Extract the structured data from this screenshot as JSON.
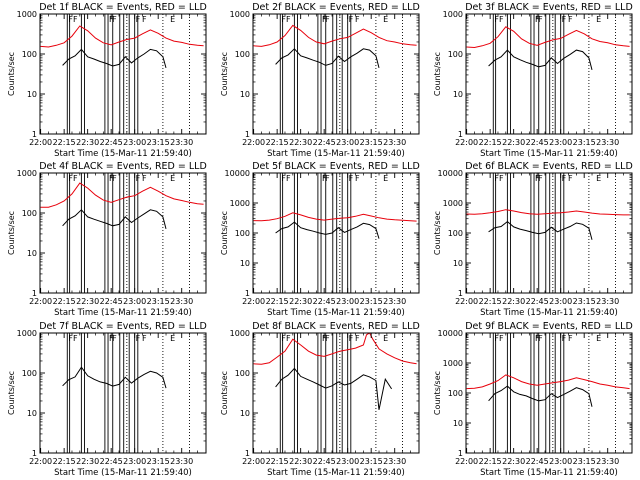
{
  "colors": {
    "events": "#000000",
    "lld": "#e8000b",
    "background": "#ffffff"
  },
  "shared": {
    "title_suffix": "BLACK = Events, RED = LLD",
    "xlabel": "Start Time (15-Mar-11 21:59:40)",
    "ylabel": "Counts/sec",
    "x_range_min": [
      -0.4,
      105.5
    ],
    "x_tick_minutes": [
      0,
      15,
      30,
      45,
      60,
      75,
      90
    ],
    "x_tick_labels": [
      "22:00",
      "22:15",
      "22:30",
      "22:45",
      "23:00",
      "23:15",
      "23:30"
    ],
    "dotted_marks_min": [
      55,
      78,
      95
    ],
    "markers": [
      {
        "min": 17,
        "label": "F"
      },
      {
        "min": 20,
        "label": "F"
      },
      {
        "min": 43,
        "label": "F"
      },
      {
        "min": 45,
        "label": "F"
      },
      {
        "min": 60,
        "label": "F"
      },
      {
        "min": 64,
        "label": "F"
      },
      {
        "min": 82,
        "label": "E"
      }
    ]
  },
  "chart_data": [
    {
      "type": "line",
      "name": "det1",
      "title": "Det 1f BLACK = Events, RED = LLD",
      "xlabel": "Start Time (15-Mar-11 21:59:40)",
      "ylabel": "Counts/sec",
      "y_scale": "log",
      "ylim": [
        1,
        1000
      ],
      "y_tick_labels": [
        "1",
        "10",
        "100",
        "1000"
      ],
      "vlines_min": [
        17,
        18.5,
        26,
        28,
        41,
        43,
        46,
        50.5,
        53,
        56.5,
        60,
        62
      ],
      "series": [
        {
          "name": "Events",
          "color": "#000000",
          "x_min": [
            14,
            18,
            22,
            26,
            30,
            34,
            38,
            42,
            46,
            50,
            54,
            58,
            62,
            66,
            70,
            74,
            78,
            80
          ],
          "values": [
            52,
            75,
            90,
            130,
            85,
            75,
            65,
            58,
            50,
            55,
            85,
            60,
            80,
            100,
            130,
            120,
            85,
            45
          ]
        },
        {
          "name": "LLD",
          "color": "#e8000b",
          "x_min": [
            0,
            5,
            10,
            15,
            20,
            25,
            30,
            35,
            40,
            45,
            50,
            55,
            60,
            65,
            70,
            75,
            80,
            85,
            90,
            95,
            100,
            104
          ],
          "values": [
            155,
            150,
            165,
            190,
            280,
            500,
            380,
            250,
            190,
            170,
            200,
            230,
            250,
            320,
            400,
            330,
            250,
            210,
            195,
            175,
            165,
            160
          ]
        }
      ]
    },
    {
      "type": "line",
      "name": "det2",
      "title": "Det 2f BLACK = Events, RED = LLD",
      "xlabel": "Start Time (15-Mar-11 21:59:40)",
      "ylabel": "Counts/sec",
      "y_scale": "log",
      "ylim": [
        1,
        1000
      ],
      "y_tick_labels": [
        "1",
        "10",
        "100",
        "1000"
      ],
      "vlines_min": [
        17,
        18.5,
        26,
        28,
        41,
        43,
        46,
        50.5,
        53,
        56.5,
        60,
        62
      ],
      "series": [
        {
          "name": "Events",
          "color": "#000000",
          "x_min": [
            14,
            18,
            22,
            26,
            30,
            34,
            38,
            42,
            46,
            50,
            54,
            58,
            62,
            66,
            70,
            74,
            78,
            80
          ],
          "values": [
            55,
            80,
            95,
            135,
            90,
            80,
            70,
            62,
            52,
            58,
            88,
            65,
            85,
            105,
            135,
            125,
            90,
            45
          ]
        },
        {
          "name": "LLD",
          "color": "#e8000b",
          "x_min": [
            0,
            5,
            10,
            15,
            20,
            25,
            30,
            35,
            40,
            45,
            50,
            55,
            60,
            65,
            70,
            75,
            80,
            85,
            90,
            95,
            100,
            104
          ],
          "values": [
            160,
            155,
            170,
            200,
            290,
            520,
            390,
            260,
            200,
            180,
            210,
            240,
            260,
            330,
            420,
            340,
            260,
            215,
            200,
            180,
            170,
            165
          ]
        }
      ]
    },
    {
      "type": "line",
      "name": "det3",
      "title": "Det 3f BLACK = Events, RED = LLD",
      "xlabel": "Start Time (15-Mar-11 21:59:40)",
      "ylabel": "Counts/sec",
      "y_scale": "log",
      "ylim": [
        1,
        1000
      ],
      "y_tick_labels": [
        "1",
        "10",
        "100",
        "1000"
      ],
      "vlines_min": [
        17,
        18.5,
        26,
        28,
        41,
        43,
        46,
        50.5,
        53,
        56.5,
        60,
        62
      ],
      "series": [
        {
          "name": "Events",
          "color": "#000000",
          "x_min": [
            14,
            18,
            22,
            26,
            30,
            34,
            38,
            42,
            46,
            50,
            54,
            58,
            62,
            66,
            70,
            74,
            78,
            80
          ],
          "values": [
            50,
            70,
            85,
            125,
            85,
            72,
            62,
            55,
            48,
            52,
            80,
            58,
            78,
            98,
            125,
            115,
            80,
            40
          ]
        },
        {
          "name": "LLD",
          "color": "#e8000b",
          "x_min": [
            0,
            5,
            10,
            15,
            20,
            25,
            30,
            35,
            40,
            45,
            50,
            55,
            60,
            65,
            70,
            75,
            80,
            85,
            90,
            95,
            100,
            104
          ],
          "values": [
            150,
            145,
            160,
            185,
            270,
            480,
            370,
            240,
            185,
            165,
            195,
            225,
            245,
            310,
            390,
            320,
            240,
            205,
            190,
            170,
            160,
            155
          ]
        }
      ]
    },
    {
      "type": "line",
      "name": "det4",
      "title": "Det 4f BLACK = Events, RED = LLD",
      "xlabel": "Start Time (15-Mar-11 21:59:40)",
      "ylabel": "Counts/sec",
      "y_scale": "log",
      "ylim": [
        1,
        1000
      ],
      "y_tick_labels": [
        "1",
        "10",
        "100",
        "1000"
      ],
      "vlines_min": [
        17,
        18.5,
        26,
        28,
        41,
        43,
        46,
        50.5,
        53,
        56.5,
        60,
        62
      ],
      "series": [
        {
          "name": "Events",
          "color": "#000000",
          "x_min": [
            14,
            18,
            22,
            26,
            30,
            34,
            38,
            42,
            46,
            50,
            54,
            58,
            62,
            66,
            70,
            74,
            78,
            80
          ],
          "values": [
            48,
            70,
            85,
            120,
            80,
            70,
            62,
            55,
            48,
            52,
            80,
            58,
            75,
            95,
            120,
            110,
            80,
            40
          ]
        },
        {
          "name": "LLD",
          "color": "#e8000b",
          "x_min": [
            0,
            5,
            10,
            15,
            20,
            25,
            30,
            35,
            40,
            45,
            50,
            55,
            60,
            65,
            70,
            75,
            80,
            85,
            90,
            95,
            100,
            104
          ],
          "values": [
            140,
            140,
            160,
            200,
            300,
            560,
            420,
            280,
            210,
            185,
            215,
            250,
            270,
            350,
            440,
            350,
            270,
            225,
            205,
            185,
            170,
            165
          ]
        }
      ]
    },
    {
      "type": "line",
      "name": "det5",
      "title": "Det 5f BLACK = Events, RED = LLD",
      "xlabel": "Start Time (15-Mar-11 21:59:40)",
      "ylabel": "Counts/sec",
      "y_scale": "log",
      "ylim": [
        1,
        10000
      ],
      "y_tick_labels": [
        "1",
        "10",
        "100",
        "1000",
        "10000"
      ],
      "vlines_min": [
        17,
        18.5,
        26,
        28,
        41,
        43,
        46,
        50.5,
        53,
        56.5,
        60,
        62
      ],
      "series": [
        {
          "name": "Events",
          "color": "#000000",
          "x_min": [
            14,
            18,
            22,
            26,
            30,
            34,
            38,
            42,
            46,
            50,
            54,
            58,
            62,
            66,
            70,
            74,
            78,
            80
          ],
          "values": [
            100,
            140,
            160,
            230,
            150,
            130,
            115,
            100,
            90,
            100,
            150,
            105,
            130,
            160,
            210,
            190,
            140,
            65
          ]
        },
        {
          "name": "LLD",
          "color": "#e8000b",
          "x_min": [
            0,
            5,
            10,
            15,
            20,
            25,
            30,
            35,
            40,
            45,
            50,
            55,
            60,
            65,
            70,
            75,
            80,
            85,
            90,
            95,
            100,
            104
          ],
          "values": [
            260,
            255,
            270,
            300,
            360,
            470,
            400,
            330,
            290,
            270,
            290,
            310,
            320,
            360,
            420,
            370,
            320,
            290,
            275,
            265,
            255,
            250
          ]
        }
      ]
    },
    {
      "type": "line",
      "name": "det6",
      "title": "Det 6f BLACK = Events, RED = LLD",
      "xlabel": "Start Time (15-Mar-11 21:59:40)",
      "ylabel": "Counts/sec",
      "y_scale": "log",
      "ylim": [
        1,
        10000
      ],
      "y_tick_labels": [
        "1",
        "10",
        "100",
        "1000",
        "10000"
      ],
      "vlines_min": [
        17,
        18.5,
        26,
        28,
        41,
        43,
        46,
        50.5,
        53,
        56.5,
        60,
        62
      ],
      "series": [
        {
          "name": "Events",
          "color": "#000000",
          "x_min": [
            14,
            18,
            22,
            26,
            30,
            34,
            38,
            42,
            46,
            50,
            54,
            58,
            62,
            66,
            70,
            74,
            78,
            80
          ],
          "values": [
            110,
            150,
            165,
            240,
            160,
            135,
            120,
            105,
            95,
            105,
            155,
            110,
            135,
            165,
            215,
            195,
            145,
            60
          ]
        },
        {
          "name": "LLD",
          "color": "#e8000b",
          "x_min": [
            0,
            5,
            10,
            15,
            20,
            25,
            30,
            35,
            40,
            45,
            50,
            55,
            60,
            65,
            70,
            75,
            80,
            85,
            90,
            95,
            100,
            104
          ],
          "values": [
            430,
            420,
            440,
            470,
            520,
            600,
            540,
            480,
            440,
            420,
            440,
            460,
            470,
            500,
            540,
            500,
            460,
            430,
            420,
            410,
            400,
            400
          ]
        }
      ]
    },
    {
      "type": "line",
      "name": "det7",
      "title": "Det 7f BLACK = Events, RED = LLD",
      "xlabel": "Start Time (15-Mar-11 21:59:40)",
      "ylabel": "Counts/sec",
      "y_scale": "log",
      "ylim": [
        1,
        1000
      ],
      "y_tick_labels": [
        "1",
        "10",
        "100",
        "1000"
      ],
      "vlines_min": [
        17,
        18.5,
        26,
        28,
        41,
        43,
        46,
        50.5,
        53,
        56.5,
        60,
        62
      ],
      "series": [
        {
          "name": "Events",
          "color": "#000000",
          "x_min": [
            14,
            18,
            22,
            26,
            30,
            34,
            38,
            42,
            46,
            50,
            54,
            58,
            62,
            66,
            70,
            74,
            78,
            80
          ],
          "values": [
            48,
            68,
            80,
            140,
            85,
            70,
            60,
            55,
            47,
            52,
            78,
            56,
            74,
            92,
            110,
            100,
            78,
            42
          ]
        }
      ]
    },
    {
      "type": "line",
      "name": "det8",
      "title": "Det 8f BLACK = Events, RED = LLD",
      "xlabel": "Start Time (15-Mar-11 21:59:40)",
      "ylabel": "Counts/sec",
      "y_scale": "log",
      "ylim": [
        1,
        1000
      ],
      "y_tick_labels": [
        "1",
        "10",
        "100",
        "1000"
      ],
      "vlines_min": [
        17,
        18.5,
        26,
        28,
        41,
        43,
        46,
        50.5,
        53,
        56.5,
        60,
        62
      ],
      "series": [
        {
          "name": "Events",
          "color": "#000000",
          "x_min": [
            14,
            18,
            22,
            26,
            30,
            34,
            38,
            42,
            46,
            50,
            54,
            58,
            62,
            66,
            70,
            74,
            78,
            80,
            84,
            88
          ],
          "values": [
            45,
            70,
            88,
            130,
            82,
            70,
            60,
            50,
            42,
            48,
            60,
            50,
            55,
            70,
            90,
            80,
            65,
            12,
            70,
            40
          ]
        },
        {
          "name": "LLD",
          "color": "#e8000b",
          "x_min": [
            0,
            5,
            10,
            15,
            20,
            25,
            30,
            35,
            40,
            45,
            50,
            55,
            60,
            65,
            70,
            72,
            74,
            76,
            80,
            85,
            90,
            95,
            100,
            104
          ],
          "values": [
            170,
            165,
            180,
            250,
            350,
            700,
            500,
            350,
            280,
            260,
            300,
            350,
            380,
            420,
            500,
            900,
            1000,
            700,
            400,
            300,
            240,
            200,
            180,
            170
          ]
        }
      ]
    },
    {
      "type": "line",
      "name": "det9",
      "title": "Det 9f BLACK = Events, RED = LLD",
      "xlabel": "Start Time (15-Mar-11 21:59:40)",
      "ylabel": "Counts/sec",
      "y_scale": "log",
      "ylim": [
        1,
        10000
      ],
      "y_tick_labels": [
        "1",
        "10",
        "100",
        "1000",
        "10000"
      ],
      "vlines_min": [
        17,
        18.5,
        26,
        28,
        41,
        43,
        46,
        50.5,
        53,
        56.5,
        60,
        62
      ],
      "series": [
        {
          "name": "Events",
          "color": "#000000",
          "x_min": [
            14,
            18,
            22,
            26,
            30,
            34,
            38,
            42,
            46,
            50,
            54,
            58,
            62,
            66,
            70,
            74,
            78,
            80
          ],
          "values": [
            55,
            95,
            120,
            170,
            110,
            90,
            80,
            65,
            55,
            60,
            95,
            70,
            90,
            115,
            150,
            130,
            95,
            35
          ]
        },
        {
          "name": "LLD",
          "color": "#e8000b",
          "x_min": [
            0,
            5,
            10,
            15,
            20,
            25,
            30,
            35,
            40,
            45,
            50,
            55,
            60,
            65,
            70,
            75,
            80,
            85,
            90,
            95,
            100,
            104
          ],
          "values": [
            140,
            145,
            160,
            200,
            260,
            400,
            320,
            240,
            200,
            180,
            200,
            220,
            240,
            270,
            320,
            280,
            240,
            200,
            180,
            160,
            150,
            140
          ]
        }
      ]
    }
  ]
}
